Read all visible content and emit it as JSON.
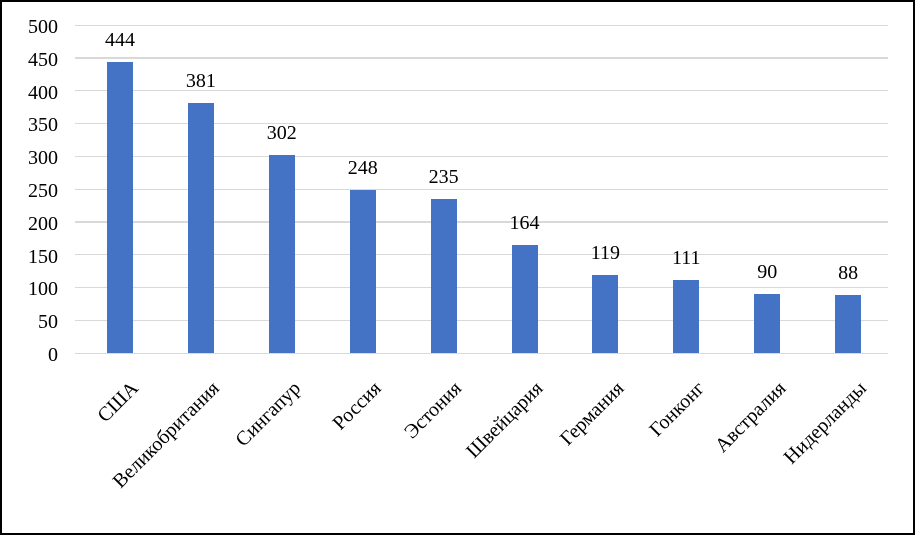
{
  "chart_data": {
    "type": "bar",
    "categories": [
      "США",
      "Великобритания",
      "Сингапур",
      "Россия",
      "Эстония",
      "Швейцария",
      "Германия",
      "Гонконг",
      "Австралия",
      "Нидерланды"
    ],
    "values": [
      444,
      381,
      302,
      248,
      235,
      164,
      119,
      111,
      90,
      88
    ],
    "title": "",
    "xlabel": "",
    "ylabel": "",
    "ylim": [
      0,
      500
    ],
    "ytick_step": 50,
    "yticks": [
      0,
      50,
      100,
      150,
      200,
      250,
      300,
      350,
      400,
      450,
      500
    ],
    "grid": "horizontal",
    "legend": null,
    "data_labels": true,
    "x_label_rotation_deg": -45,
    "colors": {
      "bar": "#4472C4",
      "gridline": "#D9D9D9",
      "text": "#000000",
      "border": "#000000",
      "background": "#FFFFFF"
    }
  }
}
